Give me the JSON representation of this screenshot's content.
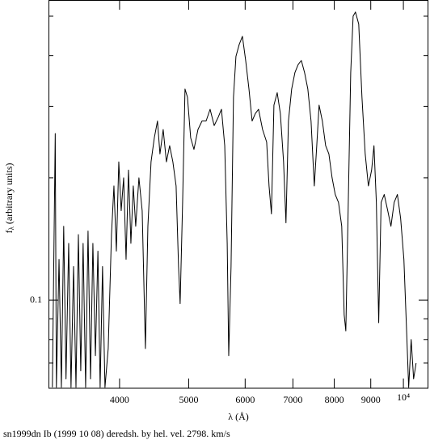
{
  "chart_data": {
    "type": "line",
    "xlabel": "λ (Å)",
    "ylabel": {
      "main": "f",
      "sub": "λ",
      "rest": " (arbitrary units)"
    },
    "caption": "sn1999dn Ib (1999 10 08) deredsh. by hel. vel.  2798. km/s",
    "xlog": true,
    "ylog": true,
    "color": "#000000",
    "xlim": [
      3180,
      10840
    ],
    "ylim": [
      0.0607,
      0.548
    ],
    "xticks": [
      4000,
      5000,
      6000,
      7000,
      8000,
      9000,
      {
        "value": 10000,
        "label": "10⁴"
      }
    ],
    "yticks": [
      0.1
    ],
    "yminorticks": [
      0.07,
      0.08,
      0.09,
      0.2,
      0.3,
      0.4,
      0.5
    ],
    "x": [
      3220,
      3250,
      3262,
      3290,
      3315,
      3340,
      3365,
      3394,
      3420,
      3448,
      3475,
      3502,
      3529,
      3556,
      3585,
      3613,
      3642,
      3670,
      3700,
      3730,
      3757,
      3786,
      3816,
      3856,
      3897,
      3928,
      3959,
      3990,
      4021,
      4053,
      4085,
      4117,
      4149,
      4181,
      4214,
      4258,
      4303,
      4348,
      4383,
      4428,
      4475,
      4521,
      4557,
      4605,
      4653,
      4702,
      4751,
      4801,
      4839,
      4864,
      4903,
      4941,
      4980,
      5032,
      5086,
      5152,
      5220,
      5289,
      5358,
      5429,
      5500,
      5558,
      5617,
      5662,
      5690,
      5733,
      5778,
      5824,
      5886,
      5947,
      6010,
      6074,
      6136,
      6201,
      6265,
      6347,
      6431,
      6481,
      6531,
      6584,
      6654,
      6722,
      6792,
      6845,
      6900,
      6972,
      7045,
      7119,
      7193,
      7269,
      7345,
      7422,
      7500,
      7560,
      7617,
      7698,
      7780,
      7862,
      7944,
      8025,
      8110,
      8195,
      8260,
      8304,
      8370,
      8436,
      8502,
      8566,
      8657,
      8748,
      8840,
      8932,
      9025,
      9094,
      9164,
      9234,
      9306,
      9400,
      9507,
      9606,
      9706,
      9808,
      9911,
      10016,
      10094,
      10172,
      10254,
      10335,
      10418
    ],
    "values": [
      0.061,
      0.257,
      0.061,
      0.126,
      0.061,
      0.152,
      0.064,
      0.138,
      0.061,
      0.121,
      0.061,
      0.145,
      0.067,
      0.138,
      0.061,
      0.148,
      0.064,
      0.138,
      0.073,
      0.132,
      0.061,
      0.121,
      0.061,
      0.076,
      0.145,
      0.191,
      0.132,
      0.219,
      0.166,
      0.2,
      0.126,
      0.209,
      0.138,
      0.191,
      0.152,
      0.2,
      0.166,
      0.076,
      0.152,
      0.219,
      0.251,
      0.276,
      0.229,
      0.263,
      0.219,
      0.24,
      0.219,
      0.191,
      0.121,
      0.098,
      0.174,
      0.331,
      0.316,
      0.251,
      0.235,
      0.263,
      0.276,
      0.276,
      0.295,
      0.269,
      0.282,
      0.295,
      0.24,
      0.138,
      0.073,
      0.121,
      0.316,
      0.398,
      0.426,
      0.446,
      0.389,
      0.331,
      0.276,
      0.288,
      0.295,
      0.263,
      0.245,
      0.191,
      0.163,
      0.302,
      0.324,
      0.288,
      0.219,
      0.155,
      0.276,
      0.331,
      0.363,
      0.38,
      0.389,
      0.363,
      0.331,
      0.276,
      0.191,
      0.24,
      0.302,
      0.276,
      0.24,
      0.229,
      0.2,
      0.182,
      0.174,
      0.152,
      0.092,
      0.084,
      0.174,
      0.363,
      0.5,
      0.512,
      0.478,
      0.316,
      0.229,
      0.191,
      0.209,
      0.24,
      0.174,
      0.088,
      0.174,
      0.182,
      0.166,
      0.152,
      0.174,
      0.182,
      0.159,
      0.126,
      0.088,
      0.061,
      0.08,
      0.064,
      0.07
    ]
  }
}
